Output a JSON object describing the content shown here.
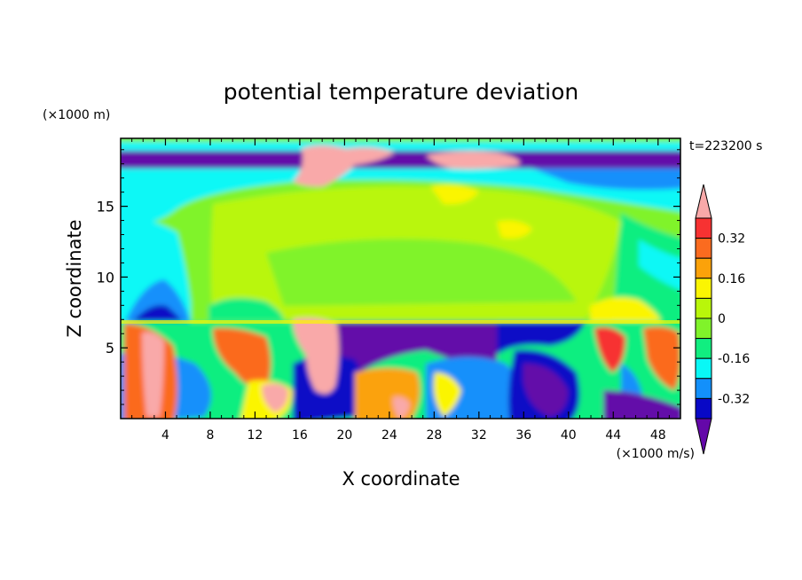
{
  "chart_data": {
    "type": "heatmap",
    "title": "potential temperature deviation",
    "xlabel": "X coordinate",
    "ylabel": "Z coordinate",
    "x_unit": "(×1000 m/s)",
    "y_unit": "(×1000 m)",
    "time_label": "t=223200 s",
    "xlim": [
      0,
      50
    ],
    "ylim": [
      0,
      19.8
    ],
    "x_ticks": [
      4,
      8,
      12,
      16,
      20,
      24,
      28,
      32,
      36,
      40,
      44,
      48
    ],
    "y_ticks": [
      5,
      10,
      15
    ],
    "colorbar": {
      "ticks": [
        "0.32",
        "0.16",
        "0",
        "-0.16",
        "-0.32"
      ],
      "colors": [
        "#f9a9a9",
        "#f73232",
        "#fb6b1f",
        "#fba20a",
        "#fbf502",
        "#b9f60a",
        "#80f32a",
        "#11ee80",
        "#09f8f6",
        "#1390fb",
        "#0808c6",
        "#6408a9"
      ]
    }
  }
}
